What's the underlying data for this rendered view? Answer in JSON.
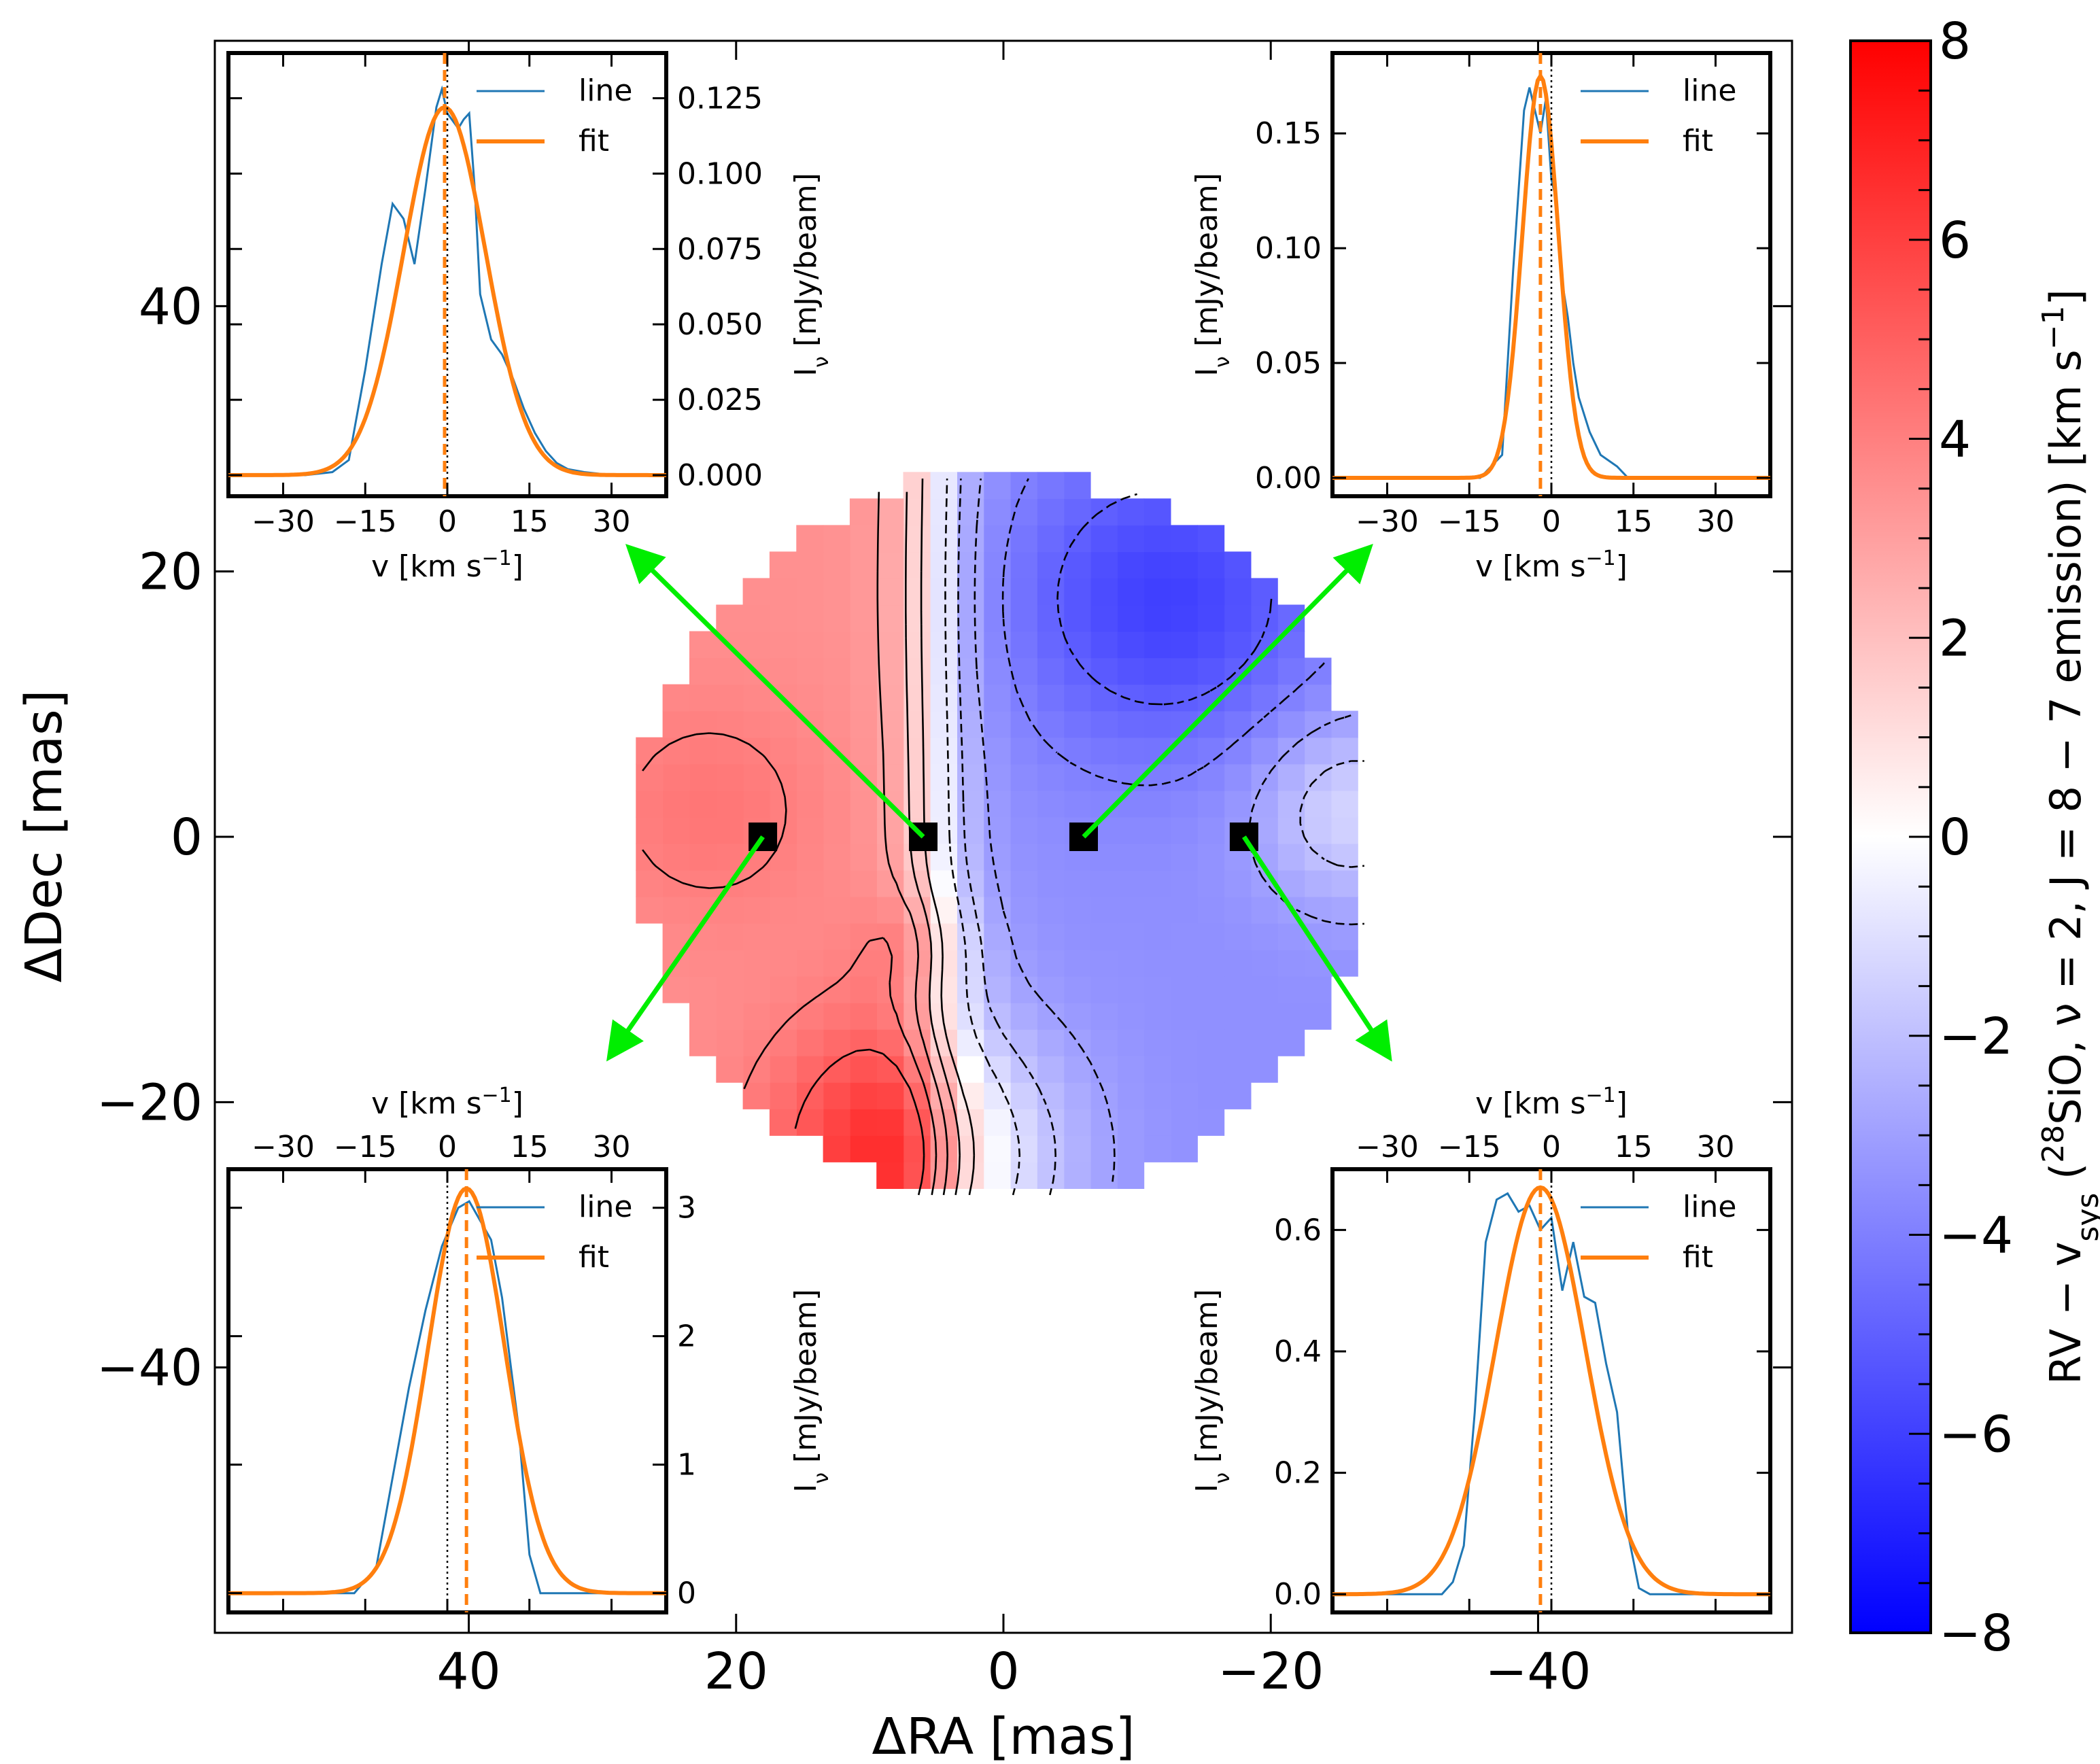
{
  "figure": {
    "main_xlabel": "ΔRA [mas]",
    "main_ylabel": "ΔDec [mas]",
    "colorbar_label": {
      "p1": "RV − v",
      "p1_sub": "sys",
      "p2": " (",
      "p2_sup": "28",
      "p3": "SiO,  ν = 2,  J = 8 − 7 emission) [km s",
      "p3_sup": "−1",
      "p4": "]"
    },
    "inset_xlabel": {
      "base": "v [km s",
      "sup": "−1",
      "end": "]"
    },
    "inset_ylabel": {
      "pre": "I",
      "sub": "ν",
      "post": " [mJy/beam]"
    },
    "legend": {
      "line": "line",
      "fit": "fit"
    },
    "colors": {
      "line": "#1f77b4",
      "fit": "#ff7f0e",
      "arrow": "#00ee00",
      "cmap_low": "#0000ff",
      "cmap_mid": "#ffffff",
      "cmap_high": "#ff0000"
    }
  },
  "chart_data": [
    {
      "type": "heatmap",
      "title": "",
      "xlabel": "ΔRA [mas]",
      "ylabel": "ΔDec [mas]",
      "xlim": [
        59,
        -59
      ],
      "ylim": [
        -60,
        60
      ],
      "x_ticks": [
        40,
        20,
        0,
        -20,
        -40
      ],
      "x_tick_labels": [
        "40",
        "20",
        "0",
        "−20",
        "−40"
      ],
      "y_ticks": [
        40,
        20,
        0,
        -20,
        -40
      ],
      "y_tick_labels": [
        "40",
        "20",
        "0",
        "−20",
        "−40"
      ],
      "map_radius_mas": 27.5,
      "pixel_size_mas": 2,
      "velocity_model": "RV ≈ +3.5 east of ΔRA≈5 (peaks ≈+7.5 near ΔRA 6, ΔDec −24), ≈ −3.5 west (troughs ≈−6 near ΔRA −12, ΔDec +18)",
      "contour_levels": [
        -5,
        -4,
        -3,
        -2,
        -1,
        1,
        2,
        3,
        4,
        5
      ],
      "marked_positions": [
        {
          "ra": 18,
          "dec": 0
        },
        {
          "ra": 6,
          "dec": 0
        },
        {
          "ra": -6,
          "dec": 0
        },
        {
          "ra": -18,
          "dec": 0
        }
      ],
      "colorbar": {
        "range": [
          -8,
          8
        ],
        "ticks": [
          8,
          6,
          4,
          2,
          0,
          -2,
          -4,
          -6,
          -8
        ],
        "tick_labels": [
          "8",
          "6",
          "4",
          "2",
          "0",
          "−2",
          "−4",
          "−6",
          "−8"
        ],
        "cmap": "bwr"
      }
    },
    {
      "type": "line",
      "panel": "top-left",
      "points_to": {
        "ra": 6,
        "dec": 0
      },
      "xlim": [
        -40,
        40
      ],
      "ylim": [
        -0.007,
        0.14
      ],
      "x_ticks": [
        -30,
        -15,
        0,
        15,
        30
      ],
      "x_tick_labels": [
        "−30",
        "−15",
        "0",
        "15",
        "30"
      ],
      "y_ticks": [
        0,
        0.025,
        0.05,
        0.075,
        0.1,
        0.125
      ],
      "y_tick_labels": [
        "0.000",
        "0.025",
        "0.050",
        "0.075",
        "0.100",
        "0.125"
      ],
      "series": [
        {
          "name": "line",
          "x": [
            -40,
            -26,
            -21,
            -18,
            -15,
            -12,
            -10,
            -8,
            -6,
            -4,
            -2,
            -1,
            0,
            2,
            3,
            4,
            5,
            6,
            8,
            10,
            12,
            14,
            16,
            18,
            20,
            22,
            25,
            30,
            40
          ],
          "y": [
            0,
            0,
            0.001,
            0.005,
            0.035,
            0.07,
            0.09,
            0.085,
            0.07,
            0.095,
            0.122,
            0.128,
            0.12,
            0.115,
            0.118,
            0.12,
            0.095,
            0.06,
            0.045,
            0.04,
            0.032,
            0.022,
            0.014,
            0.008,
            0.004,
            0.002,
            0.001,
            0,
            0
          ]
        },
        {
          "name": "fit",
          "model": "gaussian",
          "amp": 0.122,
          "center": -0.5,
          "sigma": 7.5
        },
        {
          "name": "center",
          "x": -0.5,
          "style": "dashed-vertical"
        },
        {
          "name": "zero",
          "x": 0,
          "style": "dotted-vertical"
        }
      ]
    },
    {
      "type": "line",
      "panel": "top-right",
      "points_to": {
        "ra": -6,
        "dec": 0
      },
      "xlim": [
        -40,
        40
      ],
      "ylim": [
        -0.008,
        0.185
      ],
      "x_ticks": [
        -30,
        -15,
        0,
        15,
        30
      ],
      "x_tick_labels": [
        "−30",
        "−15",
        "0",
        "15",
        "30"
      ],
      "y_ticks": [
        0,
        0.05,
        0.1,
        0.15
      ],
      "y_tick_labels": [
        "0.00",
        "0.05",
        "0.10",
        "0.15"
      ],
      "series": [
        {
          "name": "line",
          "x": [
            -40,
            -13,
            -11,
            -9,
            -7,
            -5,
            -4,
            -3,
            -2,
            -1,
            0,
            1,
            2,
            3,
            4,
            5,
            7,
            9,
            12,
            14,
            16,
            40
          ],
          "y": [
            0,
            0,
            0.005,
            0.01,
            0.09,
            0.16,
            0.17,
            0.16,
            0.15,
            0.165,
            0.13,
            0.12,
            0.085,
            0.07,
            0.05,
            0.035,
            0.02,
            0.01,
            0.005,
            0,
            0,
            0
          ]
        },
        {
          "name": "fit",
          "model": "gaussian",
          "amp": 0.175,
          "center": -2,
          "sigma": 3.3
        },
        {
          "name": "center",
          "x": -2,
          "style": "dashed-vertical"
        },
        {
          "name": "zero",
          "x": 0,
          "style": "dotted-vertical"
        }
      ]
    },
    {
      "type": "line",
      "panel": "bottom-left",
      "points_to": {
        "ra": 18,
        "dec": 0
      },
      "xlim": [
        -40,
        40
      ],
      "ylim": [
        -0.15,
        3.3
      ],
      "x_ticks": [
        -30,
        -15,
        0,
        15,
        30
      ],
      "x_tick_labels": [
        "−30",
        "−15",
        "0",
        "15",
        "30"
      ],
      "y_ticks": [
        0,
        1,
        2,
        3
      ],
      "y_tick_labels": [
        "0",
        "1",
        "2",
        "3"
      ],
      "series": [
        {
          "name": "line",
          "x": [
            -40,
            -17,
            -15,
            -13,
            -10,
            -7,
            -4,
            -1,
            2,
            4,
            6,
            8,
            10,
            13,
            15,
            17,
            19,
            40
          ],
          "y": [
            0,
            0,
            0.1,
            0.2,
            0.9,
            1.6,
            2.2,
            2.7,
            3.0,
            3.05,
            2.9,
            2.75,
            2.3,
            1.3,
            0.3,
            0,
            0,
            0
          ]
        },
        {
          "name": "fit",
          "model": "gaussian",
          "amp": 3.15,
          "center": 3.5,
          "sigma": 7.0
        },
        {
          "name": "center",
          "x": 3.5,
          "style": "dashed-vertical"
        },
        {
          "name": "zero",
          "x": 0,
          "style": "dotted-vertical"
        }
      ]
    },
    {
      "type": "line",
      "panel": "bottom-right",
      "points_to": {
        "ra": -18,
        "dec": 0
      },
      "xlim": [
        -40,
        40
      ],
      "ylim": [
        -0.03,
        0.7
      ],
      "x_ticks": [
        -30,
        -15,
        0,
        15,
        30
      ],
      "x_tick_labels": [
        "−30",
        "−15",
        "0",
        "15",
        "30"
      ],
      "y_ticks": [
        0,
        0.2,
        0.4,
        0.6
      ],
      "y_tick_labels": [
        "0.0",
        "0.2",
        "0.4",
        "0.6"
      ],
      "series": [
        {
          "name": "line",
          "x": [
            -40,
            -20,
            -18,
            -16,
            -14,
            -12,
            -10,
            -8,
            -6,
            -4,
            -2,
            0,
            2,
            4,
            6,
            8,
            10,
            12,
            14,
            16,
            18,
            40
          ],
          "y": [
            0,
            0,
            0.02,
            0.08,
            0.3,
            0.58,
            0.65,
            0.66,
            0.63,
            0.64,
            0.6,
            0.62,
            0.5,
            0.58,
            0.49,
            0.48,
            0.38,
            0.3,
            0.1,
            0.01,
            0,
            0
          ]
        },
        {
          "name": "fit",
          "model": "gaussian",
          "amp": 0.67,
          "center": -2,
          "sigma": 8.2
        },
        {
          "name": "center",
          "x": -2,
          "style": "dashed-vertical"
        },
        {
          "name": "zero",
          "x": 0,
          "style": "dotted-vertical"
        }
      ]
    }
  ]
}
